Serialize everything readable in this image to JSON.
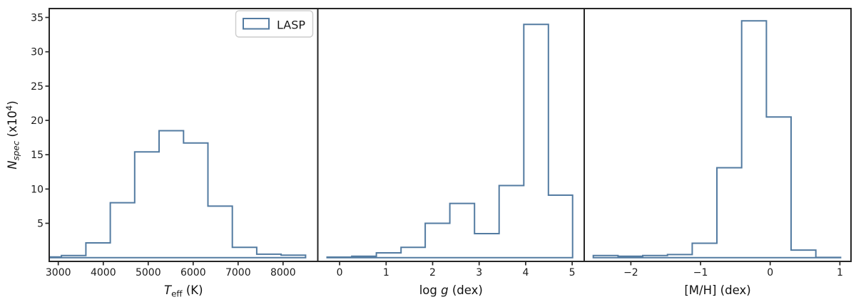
{
  "figure": {
    "background": "#ffffff"
  },
  "colors": {
    "hist_line": "#537ba1",
    "spine": "#262626",
    "tick_label": "#1a1a1a",
    "axis_label": "#111111",
    "legend_border": "#cccccc",
    "legend_bg": "#ffffff"
  },
  "legend": {
    "label": "LASP"
  },
  "axes": {
    "ylabel_plain": "N_spec (x10^4)",
    "ylabel_parts": [
      {
        "t": "N",
        "s": "i"
      },
      {
        "t": "spec",
        "s": "isub"
      },
      {
        "t": " (x10",
        "s": "n"
      },
      {
        "t": "4",
        "s": "sup"
      },
      {
        "t": ")",
        "s": "n"
      }
    ],
    "yticks": [
      5,
      10,
      15,
      20,
      25,
      30,
      35
    ],
    "ylim": [
      -0.55,
      36.3
    ]
  },
  "chart_data": [
    {
      "type": "histogram-step",
      "series": "LASP",
      "panel": "teff",
      "xlabel_plain": "T_eff (K)",
      "xlabel_parts": [
        {
          "t": "T",
          "s": "i"
        },
        {
          "t": "eff",
          "s": "sub"
        },
        {
          "t": " (K)",
          "s": "n"
        }
      ],
      "xlim": [
        2798,
        8772
      ],
      "bin_edges": [
        2825,
        3070,
        3613,
        4156,
        4699,
        5242,
        5785,
        6328,
        6871,
        7414,
        7957,
        8500
      ],
      "values": [
        0.1,
        0.3,
        2.15,
        8.0,
        15.4,
        18.5,
        16.7,
        7.5,
        1.5,
        0.5,
        0.35
      ],
      "xticks": [
        {
          "v": 3000,
          "label": "3000"
        },
        {
          "v": 4000,
          "label": "4000"
        },
        {
          "v": 5000,
          "label": "5000"
        },
        {
          "v": 6000,
          "label": "6000"
        },
        {
          "v": 7000,
          "label": "7000"
        },
        {
          "v": 8000,
          "label": "8000"
        }
      ]
    },
    {
      "type": "histogram-step",
      "series": "LASP",
      "panel": "logg",
      "xlabel_plain": "log g (dex)",
      "xlabel_parts": [
        {
          "t": "log ",
          "s": "n"
        },
        {
          "t": "g",
          "s": "i"
        },
        {
          "t": " (dex)",
          "s": "n"
        }
      ],
      "xlim": [
        -0.47,
        5.26
      ],
      "bin_edges": [
        -0.27,
        0.26,
        0.79,
        1.32,
        1.84,
        2.37,
        2.9,
        3.43,
        3.96,
        4.49,
        5.01
      ],
      "values": [
        0.07,
        0.2,
        0.7,
        1.5,
        5.0,
        7.9,
        3.5,
        10.5,
        34.0,
        9.1
      ],
      "xticks": [
        {
          "v": 0,
          "label": "0"
        },
        {
          "v": 1,
          "label": "1"
        },
        {
          "v": 2,
          "label": "2"
        },
        {
          "v": 3,
          "label": "3"
        },
        {
          "v": 4,
          "label": "4"
        },
        {
          "v": 5,
          "label": "5"
        }
      ]
    },
    {
      "type": "histogram-step",
      "series": "LASP",
      "panel": "mh",
      "xlabel_plain": "[M/H] (dex)",
      "xlabel_parts": [
        {
          "t": "[M/H] (dex)",
          "s": "n"
        }
      ],
      "xlim": [
        -2.67,
        1.16
      ],
      "bin_edges": [
        -2.54,
        -2.185,
        -1.83,
        -1.475,
        -1.12,
        -0.765,
        -0.41,
        -0.055,
        0.3,
        0.655,
        1.01
      ],
      "values": [
        0.3,
        0.2,
        0.3,
        0.45,
        2.1,
        13.1,
        34.5,
        20.5,
        1.1,
        0.03
      ],
      "xticks": [
        {
          "v": -2,
          "label": "−2"
        },
        {
          "v": -1,
          "label": "−1"
        },
        {
          "v": 0,
          "label": "0"
        },
        {
          "v": 1,
          "label": "1"
        }
      ]
    }
  ]
}
